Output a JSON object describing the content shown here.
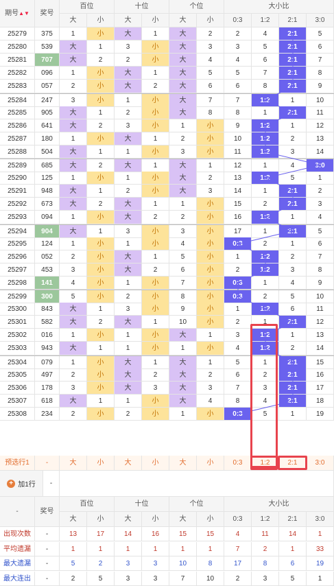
{
  "header": {
    "issue": "期号",
    "sort_icon": "▲▼",
    "prize": "奖号",
    "groups": [
      "百位",
      "十位",
      "个位",
      "大小比"
    ],
    "sub": [
      "大",
      "小",
      "大",
      "小",
      "大",
      "小",
      "0:3",
      "1:2",
      "2:1",
      "3:0"
    ]
  },
  "rows": [
    {
      "issue": "25279",
      "num": "375",
      "h": "1",
      "t": "1",
      "u": "2",
      "r": [
        "2",
        "4",
        "2:1",
        "5"
      ]
    },
    {
      "issue": "25280",
      "num": "539",
      "h": "1",
      "t": "3",
      "u": "3",
      "r": [
        "3",
        "5",
        "2:1",
        "6"
      ]
    },
    {
      "issue": "25281",
      "num": "707",
      "h": "2",
      "t": "2",
      "u": "4",
      "r": [
        "4",
        "6",
        "2:1",
        "7"
      ]
    },
    {
      "issue": "25282",
      "num": "096",
      "h": "1",
      "t": "1",
      "u": "5",
      "r": [
        "5",
        "7",
        "2:1",
        "8"
      ]
    },
    {
      "issue": "25283",
      "num": "057",
      "h": "2",
      "t": "2",
      "u": "6",
      "r": [
        "6",
        "8",
        "2:1",
        "9"
      ]
    },
    {
      "issue": "25284",
      "num": "247",
      "h": "3",
      "t": "1",
      "u": "7",
      "r": [
        "7",
        "1:2",
        "1",
        "10"
      ]
    },
    {
      "issue": "25285",
      "num": "905",
      "h": "1",
      "t": "2",
      "u": "8",
      "r": [
        "8",
        "1",
        "2:1",
        "11"
      ]
    },
    {
      "issue": "25286",
      "num": "641",
      "h": "2",
      "t": "3",
      "u": "1",
      "r": [
        "9",
        "1:2",
        "1",
        "12"
      ]
    },
    {
      "issue": "25287",
      "num": "180",
      "h": "1",
      "t": "1",
      "u": "2",
      "r": [
        "10",
        "1:2",
        "2",
        "13"
      ]
    },
    {
      "issue": "25288",
      "num": "504",
      "h": "1",
      "t": "1",
      "u": "3",
      "r": [
        "11",
        "1:2",
        "3",
        "14"
      ]
    },
    {
      "issue": "25289",
      "num": "685",
      "h": "2",
      "t": "1",
      "u": "1",
      "r": [
        "12",
        "1",
        "4",
        "3:0"
      ]
    },
    {
      "issue": "25290",
      "num": "125",
      "h": "1",
      "t": "1",
      "u": "2",
      "r": [
        "13",
        "1:2",
        "5",
        "1"
      ]
    },
    {
      "issue": "25291",
      "num": "948",
      "h": "1",
      "t": "2",
      "u": "3",
      "r": [
        "14",
        "1",
        "2:1",
        "2"
      ]
    },
    {
      "issue": "25292",
      "num": "673",
      "h": "2",
      "t": "1",
      "u": "1",
      "r": [
        "15",
        "2",
        "2:1",
        "3"
      ]
    },
    {
      "issue": "25293",
      "num": "094",
      "h": "1",
      "t": "2",
      "u": "2",
      "r": [
        "16",
        "1:2",
        "1",
        "4"
      ]
    },
    {
      "issue": "25294",
      "num": "904",
      "h": "1",
      "t": "3",
      "u": "3",
      "r": [
        "17",
        "1",
        "2:1",
        "5"
      ]
    },
    {
      "issue": "25295",
      "num": "124",
      "h": "1",
      "t": "1",
      "u": "4",
      "r": [
        "0:3",
        "2",
        "1",
        "6"
      ]
    },
    {
      "issue": "25296",
      "num": "052",
      "h": "2",
      "t": "1",
      "u": "5",
      "r": [
        "1",
        "1:2",
        "2",
        "7"
      ]
    },
    {
      "issue": "25297",
      "num": "453",
      "h": "3",
      "t": "2",
      "u": "6",
      "r": [
        "2",
        "1:2",
        "3",
        "8"
      ]
    },
    {
      "issue": "25298",
      "num": "141",
      "h": "4",
      "t": "1",
      "u": "7",
      "r": [
        "0:3",
        "1",
        "4",
        "9"
      ]
    },
    {
      "issue": "25299",
      "num": "300",
      "h": "5",
      "t": "2",
      "u": "8",
      "r": [
        "0:3",
        "2",
        "5",
        "10"
      ]
    },
    {
      "issue": "25300",
      "num": "843",
      "h": "1",
      "t": "3",
      "u": "9",
      "r": [
        "1",
        "1:2",
        "6",
        "11"
      ]
    },
    {
      "issue": "25301",
      "num": "582",
      "h": "2",
      "t": "1",
      "u": "10",
      "r": [
        "2",
        "1",
        "2:1",
        "12"
      ]
    },
    {
      "issue": "25302",
      "num": "016",
      "h": "1",
      "t": "1",
      "u": "1",
      "r": [
        "3",
        "1:2",
        "1",
        "13"
      ]
    },
    {
      "issue": "25303",
      "num": "943",
      "h": "1",
      "t": "1",
      "u": "1",
      "r": [
        "4",
        "1:2",
        "2",
        "14"
      ]
    },
    {
      "issue": "25304",
      "num": "079",
      "h": "1",
      "t": "1",
      "u": "1",
      "r": [
        "5",
        "1",
        "2:1",
        "15"
      ]
    },
    {
      "issue": "25305",
      "num": "497",
      "h": "2",
      "t": "2",
      "u": "2",
      "r": [
        "6",
        "2",
        "2:1",
        "16"
      ]
    },
    {
      "issue": "25306",
      "num": "178",
      "h": "3",
      "t": "3",
      "u": "3",
      "r": [
        "7",
        "3",
        "2:1",
        "17"
      ]
    },
    {
      "issue": "25307",
      "num": "618",
      "h": "1",
      "t": "1",
      "u": "4",
      "r": [
        "8",
        "4",
        "2:1",
        "18"
      ]
    },
    {
      "issue": "25308",
      "num": "234",
      "h": "2",
      "t": "2",
      "u": "1",
      "r": [
        "0:3",
        "5",
        "1",
        "19"
      ]
    }
  ],
  "preselect": {
    "label": "预选行1",
    "dash": "-",
    "sub": [
      "大",
      "小",
      "大",
      "小",
      "大",
      "小",
      "0:3",
      "1:2",
      "2:1",
      "3:0"
    ]
  },
  "add_row": {
    "label": "加1行",
    "icon": "+",
    "dash": "-"
  },
  "footer_header": {
    "dash": "-",
    "prize": "奖号",
    "groups": [
      "百位",
      "十位",
      "个位",
      "大小比"
    ],
    "sub": [
      "大",
      "小",
      "大",
      "小",
      "大",
      "小",
      "0:3",
      "1:2",
      "2:1",
      "3:0"
    ]
  },
  "stats": [
    {
      "label": "出现次数",
      "dash": "-",
      "v": [
        "13",
        "17",
        "14",
        "16",
        "15",
        "15",
        "4",
        "11",
        "14",
        "1"
      ]
    },
    {
      "label": "平均遗漏",
      "dash": "-",
      "v": [
        "1",
        "1",
        "1",
        "1",
        "1",
        "1",
        "7",
        "2",
        "1",
        "33"
      ]
    },
    {
      "label": "最大遗漏",
      "dash": "-",
      "v": [
        "5",
        "2",
        "3",
        "3",
        "10",
        "8",
        "17",
        "8",
        "6",
        "19"
      ]
    },
    {
      "label": "最大连出",
      "dash": "-",
      "v": [
        "2",
        "5",
        "3",
        "3",
        "7",
        "10",
        "2",
        "3",
        "5",
        "1"
      ]
    }
  ],
  "colors": {
    "big": "#d9c2f5",
    "small": "#fde39a",
    "ratio": "#6a62ee",
    "highlight": "#e8434d",
    "green": "#9cc79c"
  }
}
